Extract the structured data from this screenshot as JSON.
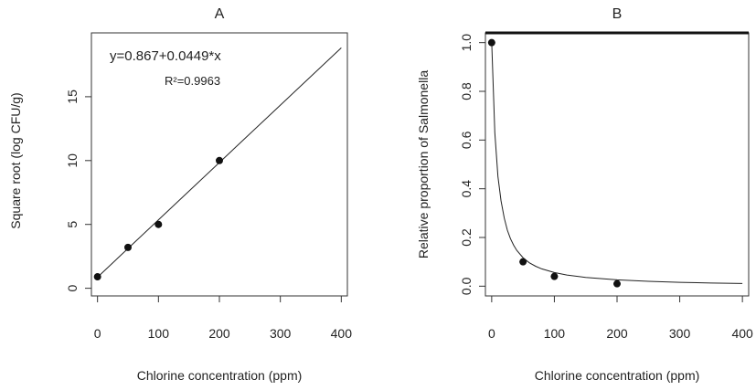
{
  "chart_data": [
    {
      "type": "scatter",
      "panel_label": "A",
      "xlabel": "Chlorine concentration (ppm)",
      "ylabel": "Square root (log CFU/g)",
      "xlim": [
        -10,
        410
      ],
      "ylim": [
        -0.6,
        20.0
      ],
      "xticks": [
        0,
        100,
        200,
        300,
        400
      ],
      "yticks": [
        0,
        5,
        10,
        15
      ],
      "grid": false,
      "points": {
        "x": [
          0,
          50,
          100,
          200
        ],
        "y": [
          0.9,
          3.2,
          5.0,
          10.0
        ]
      },
      "fit_line": {
        "x": [
          0,
          400
        ],
        "y": [
          0.867,
          18.83
        ]
      },
      "annotations": {
        "equation": "y=0.867+0.0449*x",
        "r2": "R²=0.9963"
      }
    },
    {
      "type": "scatter",
      "panel_label": "B",
      "xlabel": "Chlorine concentration (ppm)",
      "ylabel": "Relative proportion of Salmonella",
      "xlim": [
        -10,
        410
      ],
      "ylim": [
        -0.04,
        1.04
      ],
      "xticks": [
        0,
        100,
        200,
        300,
        400
      ],
      "yticks": [
        0.0,
        0.2,
        0.4,
        0.6,
        0.8,
        1.0
      ],
      "ytick_labels": [
        "0.0",
        "0.2",
        "0.4",
        "0.6",
        "0.8",
        "1.0"
      ],
      "grid": false,
      "points": {
        "x": [
          0,
          50,
          100,
          200
        ],
        "y": [
          1.0,
          0.1,
          0.04,
          0.01
        ]
      },
      "fit_curve": {
        "x": [
          0,
          5,
          10,
          15,
          20,
          25,
          30,
          35,
          40,
          50,
          60,
          70,
          80,
          100,
          120,
          150,
          200,
          250,
          300,
          350,
          400
        ],
        "y": [
          1.0,
          0.63,
          0.45,
          0.35,
          0.28,
          0.23,
          0.195,
          0.168,
          0.147,
          0.117,
          0.096,
          0.082,
          0.071,
          0.056,
          0.046,
          0.036,
          0.026,
          0.02,
          0.016,
          0.013,
          0.011
        ]
      }
    }
  ]
}
